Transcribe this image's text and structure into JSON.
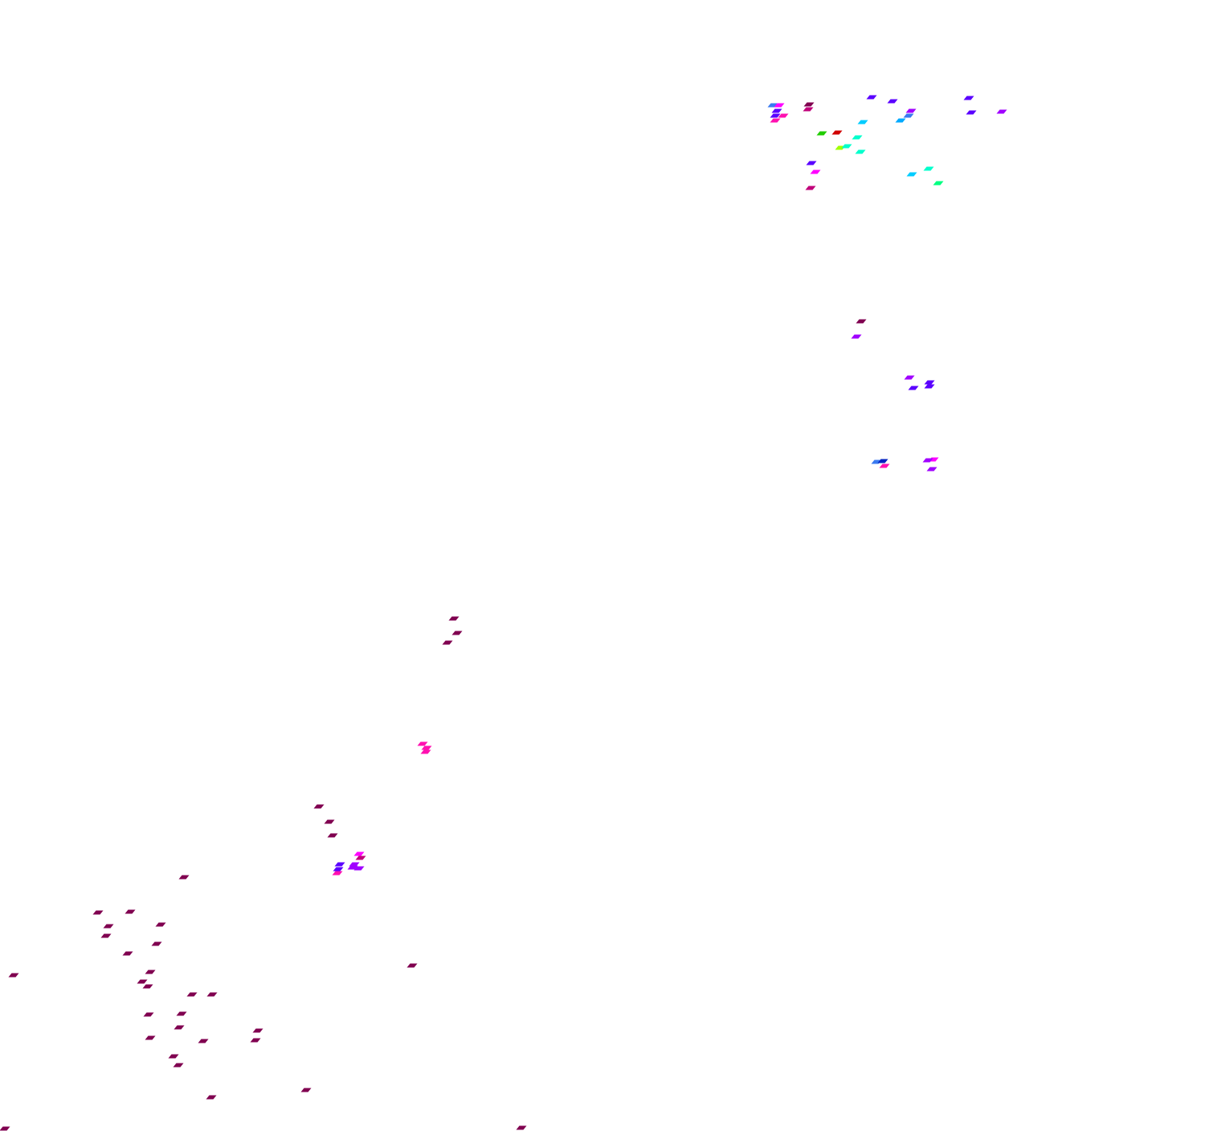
{
  "background": "#ffffff",
  "marker_shape": "parallelogram",
  "palette": {
    "dark_magenta": "#800050",
    "crimson_magenta": "#c0007a",
    "magenta": "#ff00ff",
    "pink": "#ff10b0",
    "violet": "#a000ff",
    "indigo": "#5a00ff",
    "blue": "#3a7af0",
    "navy": "#0020c0",
    "sky": "#00aaff",
    "cyan": "#00ccff",
    "aqua": "#00ffcc",
    "spring": "#00ff80",
    "lime": "#a0ff00",
    "green": "#20cc00",
    "red": "#d00000"
  }
}
